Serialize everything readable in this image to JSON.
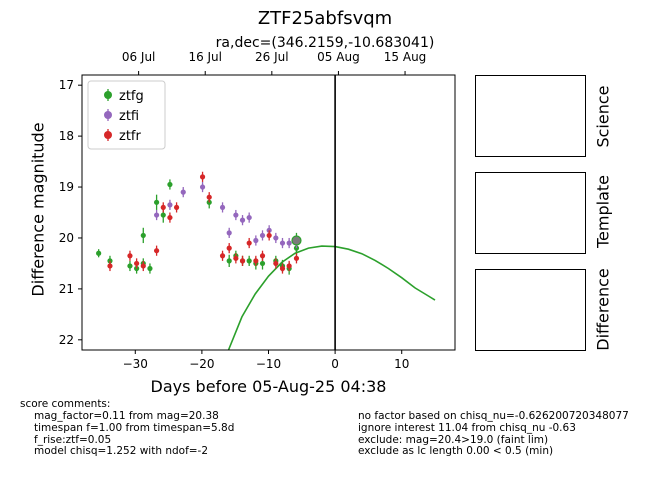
{
  "title": "ZTF25abfsvqm",
  "subtitle": "ra,dec=(346.2159,-10.683041)",
  "side_panels": [
    "Science",
    "Template",
    "Difference"
  ],
  "colors": {
    "ztfg": "#2ca02c",
    "ztfi": "#9467bd",
    "ztfr": "#d62728",
    "model": "#2ca02c",
    "now_line": "#000000"
  },
  "comments": {
    "header": "score comments:",
    "left": [
      "mag_factor=0.11 from mag=20.38",
      "timespan f=1.00 from timespan=5.8d",
      "f_rise:ztf=0.05",
      "model chisq=1.252 with ndof=-2"
    ],
    "right": [
      "no factor based on chisq_nu=-0.626200720348077",
      "ignore interest 11.04 from chisq_nu -0.63",
      "exclude: mag=20.4>19.0 (faint lim)",
      "exclude as lc length 0.00 < 0.5 (min)"
    ]
  },
  "chart_data": {
    "type": "scatter",
    "title": "ZTF25abfsvqm",
    "subtitle": "ra,dec=(346.2159,-10.683041)",
    "xlabel": "Days before 05-Aug-25 04:38",
    "ylabel": "Difference magnitude",
    "xlim": [
      -38,
      18
    ],
    "ylim": [
      22.2,
      16.8
    ],
    "y_inverted": true,
    "xticks": [
      -30,
      -20,
      -10,
      0,
      10
    ],
    "yticks": [
      17,
      18,
      19,
      20,
      21,
      22
    ],
    "top_axis": {
      "ticks": [
        {
          "x": -29.5,
          "label": "06 Jul"
        },
        {
          "x": -19.5,
          "label": "16 Jul"
        },
        {
          "x": -9.5,
          "label": "26 Jul"
        },
        {
          "x": 0.5,
          "label": "05 Aug"
        },
        {
          "x": 10.5,
          "label": "15 Aug"
        }
      ]
    },
    "vline_x": 0,
    "legend_position": "top-left",
    "grid": false,
    "series": [
      {
        "name": "ztfg",
        "points": [
          {
            "x": -35.5,
            "y": 20.3,
            "err": 0.08
          },
          {
            "x": -33.8,
            "y": 20.45,
            "err": 0.1
          },
          {
            "x": -30.8,
            "y": 20.55,
            "err": 0.1
          },
          {
            "x": -29.8,
            "y": 20.6,
            "err": 0.1
          },
          {
            "x": -28.8,
            "y": 19.95,
            "err": 0.15
          },
          {
            "x": -28.8,
            "y": 20.5,
            "err": 0.1
          },
          {
            "x": -27.8,
            "y": 20.6,
            "err": 0.1
          },
          {
            "x": -26.8,
            "y": 19.3,
            "err": 0.15
          },
          {
            "x": -25.8,
            "y": 19.55,
            "err": 0.15
          },
          {
            "x": -24.8,
            "y": 18.95,
            "err": 0.1
          },
          {
            "x": -18.9,
            "y": 19.3,
            "err": 0.12
          },
          {
            "x": -15.9,
            "y": 20.45,
            "err": 0.12
          },
          {
            "x": -14.9,
            "y": 20.35,
            "err": 0.1
          },
          {
            "x": -13.9,
            "y": 20.45,
            "err": 0.1
          },
          {
            "x": -12.9,
            "y": 20.45,
            "err": 0.1
          },
          {
            "x": -11.9,
            "y": 20.5,
            "err": 0.12
          },
          {
            "x": -10.9,
            "y": 20.5,
            "err": 0.12
          },
          {
            "x": -8.9,
            "y": 20.45,
            "err": 0.1
          },
          {
            "x": -7.9,
            "y": 20.55,
            "err": 0.12
          },
          {
            "x": -6.9,
            "y": 20.6,
            "err": 0.12
          },
          {
            "x": -5.8,
            "y": 20.1,
            "err": 0.2
          },
          {
            "x": -5.8,
            "y": 20.2,
            "err": 0.15
          }
        ]
      },
      {
        "name": "ztfi",
        "points": [
          {
            "x": -26.8,
            "y": 19.55,
            "err": 0.1
          },
          {
            "x": -24.8,
            "y": 19.35,
            "err": 0.1
          },
          {
            "x": -22.8,
            "y": 19.1,
            "err": 0.1
          },
          {
            "x": -19.9,
            "y": 19.0,
            "err": 0.1
          },
          {
            "x": -16.9,
            "y": 19.4,
            "err": 0.1
          },
          {
            "x": -15.9,
            "y": 19.9,
            "err": 0.1
          },
          {
            "x": -14.9,
            "y": 19.55,
            "err": 0.1
          },
          {
            "x": -13.9,
            "y": 19.65,
            "err": 0.1
          },
          {
            "x": -12.9,
            "y": 19.6,
            "err": 0.1
          },
          {
            "x": -11.9,
            "y": 20.05,
            "err": 0.1
          },
          {
            "x": -10.9,
            "y": 19.95,
            "err": 0.1
          },
          {
            "x": -9.9,
            "y": 19.85,
            "err": 0.1
          },
          {
            "x": -8.9,
            "y": 20.0,
            "err": 0.1
          },
          {
            "x": -7.9,
            "y": 20.1,
            "err": 0.1
          },
          {
            "x": -6.9,
            "y": 20.1,
            "err": 0.1
          },
          {
            "x": -5.8,
            "y": 20.1,
            "err": 0.1
          }
        ]
      },
      {
        "name": "ztfr",
        "points": [
          {
            "x": -33.8,
            "y": 20.55,
            "err": 0.1
          },
          {
            "x": -30.8,
            "y": 20.35,
            "err": 0.1
          },
          {
            "x": -29.8,
            "y": 20.5,
            "err": 0.1
          },
          {
            "x": -28.8,
            "y": 20.55,
            "err": 0.1
          },
          {
            "x": -26.8,
            "y": 20.25,
            "err": 0.1
          },
          {
            "x": -25.8,
            "y": 19.4,
            "err": 0.1
          },
          {
            "x": -24.8,
            "y": 19.6,
            "err": 0.1
          },
          {
            "x": -23.8,
            "y": 19.4,
            "err": 0.1
          },
          {
            "x": -19.9,
            "y": 18.8,
            "err": 0.1
          },
          {
            "x": -18.9,
            "y": 19.2,
            "err": 0.1
          },
          {
            "x": -16.9,
            "y": 20.35,
            "err": 0.1
          },
          {
            "x": -15.9,
            "y": 20.2,
            "err": 0.1
          },
          {
            "x": -14.9,
            "y": 20.4,
            "err": 0.1
          },
          {
            "x": -13.9,
            "y": 20.45,
            "err": 0.1
          },
          {
            "x": -12.9,
            "y": 20.1,
            "err": 0.1
          },
          {
            "x": -11.9,
            "y": 20.45,
            "err": 0.1
          },
          {
            "x": -10.9,
            "y": 20.35,
            "err": 0.1
          },
          {
            "x": -9.9,
            "y": 19.95,
            "err": 0.1
          },
          {
            "x": -8.9,
            "y": 20.5,
            "err": 0.1
          },
          {
            "x": -7.9,
            "y": 20.6,
            "err": 0.1
          },
          {
            "x": -6.9,
            "y": 20.55,
            "err": 0.1
          },
          {
            "x": -5.8,
            "y": 20.4,
            "err": 0.1
          }
        ]
      }
    ],
    "model_curve": {
      "name": "ztfg model",
      "points": [
        {
          "x": -16.0,
          "y": 22.2
        },
        {
          "x": -14.0,
          "y": 21.55
        },
        {
          "x": -12.0,
          "y": 21.1
        },
        {
          "x": -10.0,
          "y": 20.75
        },
        {
          "x": -8.0,
          "y": 20.48
        },
        {
          "x": -6.0,
          "y": 20.3
        },
        {
          "x": -4.0,
          "y": 20.2
        },
        {
          "x": -2.0,
          "y": 20.16
        },
        {
          "x": 0.0,
          "y": 20.17
        },
        {
          "x": 2.0,
          "y": 20.22
        },
        {
          "x": 4.0,
          "y": 20.31
        },
        {
          "x": 6.0,
          "y": 20.44
        },
        {
          "x": 8.0,
          "y": 20.6
        },
        {
          "x": 10.0,
          "y": 20.78
        },
        {
          "x": 12.0,
          "y": 20.98
        },
        {
          "x": 14.0,
          "y": 21.14
        },
        {
          "x": 15.0,
          "y": 21.22
        }
      ]
    },
    "highlight": {
      "x": -5.8,
      "y": 20.05
    }
  }
}
